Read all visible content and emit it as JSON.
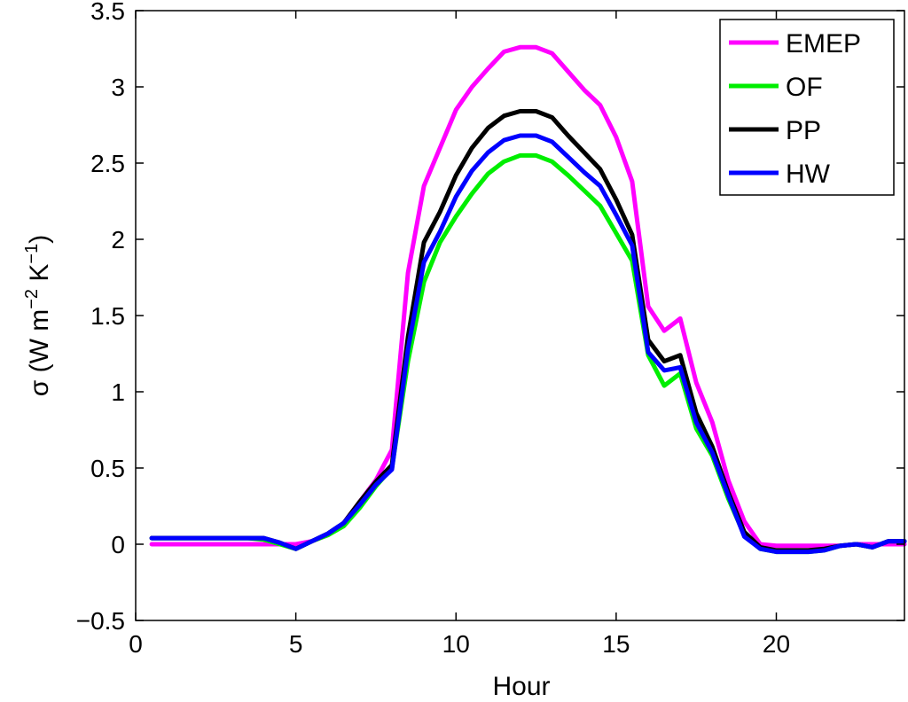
{
  "chart_data": {
    "type": "line",
    "title": "",
    "xlabel": "Hour",
    "ylabel_parts": {
      "prefix": "σ (W m",
      "exp1": "−2",
      "mid": " K",
      "exp2": "−1",
      "suffix": ")"
    },
    "xlim": [
      0,
      24
    ],
    "ylim": [
      -0.5,
      3.5
    ],
    "xticks": [
      0,
      5,
      10,
      15,
      20
    ],
    "xtick_labels": [
      "0",
      "5",
      "10",
      "15",
      "20"
    ],
    "yticks": [
      -0.5,
      0,
      0.5,
      1,
      1.5,
      2,
      2.5,
      3,
      3.5
    ],
    "ytick_labels": [
      "−0.5",
      "0",
      "0.5",
      "1",
      "1.5",
      "2",
      "2.5",
      "3",
      "3.5"
    ],
    "grid": false,
    "legend_position": "top-right",
    "x": [
      0.5,
      1,
      1.5,
      2,
      2.5,
      3,
      3.5,
      4,
      4.5,
      5,
      5.5,
      6,
      6.5,
      7,
      7.5,
      8,
      8.5,
      9,
      9.5,
      10,
      10.5,
      11,
      11.5,
      12,
      12.5,
      13,
      13.5,
      14,
      14.5,
      15,
      15.5,
      16,
      16.5,
      17,
      17.5,
      18,
      18.5,
      19,
      19.5,
      20,
      20.5,
      21,
      21.5,
      22,
      22.5,
      23,
      23.5,
      24
    ],
    "series": [
      {
        "name": "EMEP",
        "color": "#ff00ff",
        "values": [
          0.0,
          0.0,
          0.0,
          0.0,
          0.0,
          0.0,
          0.0,
          0.0,
          0.0,
          0.0,
          0.02,
          0.06,
          0.14,
          0.28,
          0.42,
          0.62,
          1.78,
          2.35,
          2.6,
          2.85,
          3.0,
          3.12,
          3.23,
          3.26,
          3.26,
          3.22,
          3.1,
          2.98,
          2.88,
          2.67,
          2.38,
          1.56,
          1.4,
          1.48,
          1.06,
          0.8,
          0.42,
          0.15,
          0.0,
          -0.01,
          -0.01,
          -0.01,
          -0.01,
          -0.01,
          0.0,
          0.0,
          0.0,
          0.0
        ]
      },
      {
        "name": "OF",
        "color": "#00ee00",
        "values": [
          0.04,
          0.04,
          0.04,
          0.04,
          0.04,
          0.04,
          0.04,
          0.03,
          0.0,
          -0.03,
          0.02,
          0.06,
          0.12,
          0.24,
          0.38,
          0.5,
          1.2,
          1.72,
          1.98,
          2.15,
          2.3,
          2.43,
          2.51,
          2.55,
          2.55,
          2.51,
          2.42,
          2.32,
          2.22,
          2.04,
          1.86,
          1.24,
          1.04,
          1.12,
          0.76,
          0.58,
          0.3,
          0.06,
          -0.03,
          -0.05,
          -0.05,
          -0.05,
          -0.04,
          -0.01,
          0.0,
          -0.02,
          0.02,
          0.02
        ]
      },
      {
        "name": "PP",
        "color": "#000000",
        "values": [
          0.04,
          0.04,
          0.04,
          0.04,
          0.04,
          0.04,
          0.04,
          0.04,
          0.01,
          -0.03,
          0.02,
          0.07,
          0.14,
          0.28,
          0.41,
          0.52,
          1.36,
          1.98,
          2.18,
          2.42,
          2.6,
          2.73,
          2.81,
          2.84,
          2.84,
          2.8,
          2.68,
          2.57,
          2.46,
          2.26,
          2.03,
          1.34,
          1.2,
          1.24,
          0.86,
          0.64,
          0.34,
          0.08,
          -0.02,
          -0.04,
          -0.04,
          -0.04,
          -0.03,
          -0.01,
          0.0,
          -0.02,
          0.02,
          0.02
        ]
      },
      {
        "name": "HW",
        "color": "#0000ff",
        "values": [
          0.04,
          0.04,
          0.04,
          0.04,
          0.04,
          0.04,
          0.04,
          0.04,
          0.01,
          -0.03,
          0.02,
          0.07,
          0.14,
          0.26,
          0.39,
          0.49,
          1.28,
          1.85,
          2.05,
          2.28,
          2.45,
          2.57,
          2.65,
          2.68,
          2.68,
          2.64,
          2.54,
          2.44,
          2.35,
          2.16,
          1.96,
          1.26,
          1.14,
          1.16,
          0.8,
          0.6,
          0.32,
          0.05,
          -0.03,
          -0.05,
          -0.05,
          -0.05,
          -0.04,
          -0.01,
          0.0,
          -0.02,
          0.02,
          0.02
        ]
      }
    ]
  }
}
